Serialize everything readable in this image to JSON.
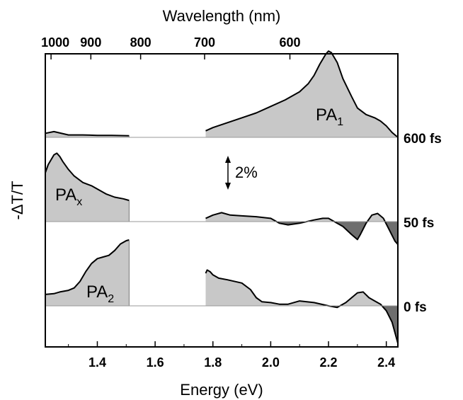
{
  "chart_data": {
    "type": "area",
    "xlabel": "Energy (eV)",
    "ylabel": "-ΔT/T",
    "top_axis_label": "Wavelength (nm)",
    "xlim": [
      1.22,
      2.44
    ],
    "x_ticks": [
      1.4,
      1.6,
      1.8,
      2.0,
      2.2,
      2.4
    ],
    "x_tick_labels": [
      "1.4",
      "1.6",
      "1.8",
      "2.0",
      "2.2",
      "2.4"
    ],
    "wavelength_ticks_nm": [
      1000,
      900,
      800,
      700,
      600
    ],
    "wavelength_tick_labels": [
      "1000",
      "900",
      "800",
      "700",
      "600"
    ],
    "scale_bar_label": "2%",
    "grid": false,
    "fill_positive": "#c8c8c8",
    "fill_negative": "#6e6e6e",
    "series": [
      {
        "name": "600 fs",
        "peak_label": "PA",
        "peak_label_sub": "1",
        "segments": [
          {
            "x": [
              1.22,
              1.25,
              1.3,
              1.35,
              1.4,
              1.45,
              1.51
            ],
            "y": [
              0.25,
              0.35,
              0.15,
              0.15,
              0.12,
              0.12,
              0.1
            ]
          },
          {
            "x": [
              1.775,
              1.8,
              1.85,
              1.9,
              1.95,
              2.0,
              2.05,
              2.1,
              2.13,
              2.15,
              2.17,
              2.19,
              2.2,
              2.21,
              2.23,
              2.25,
              2.28,
              2.3,
              2.33,
              2.36,
              2.38,
              2.4,
              2.42,
              2.44
            ],
            "y": [
              0.4,
              0.6,
              0.9,
              1.2,
              1.5,
              1.9,
              2.3,
              2.8,
              3.3,
              3.8,
              4.5,
              5.1,
              5.3,
              5.2,
              4.6,
              3.6,
              2.5,
              1.8,
              1.4,
              1.2,
              1.0,
              0.7,
              0.3,
              0.0
            ]
          }
        ]
      },
      {
        "name": "50 fs",
        "peak_label": "PA",
        "peak_label_sub": "x",
        "segments": [
          {
            "x": [
              1.22,
              1.23,
              1.25,
              1.26,
              1.27,
              1.28,
              1.3,
              1.32,
              1.35,
              1.38,
              1.4,
              1.43,
              1.46,
              1.49,
              1.51
            ],
            "y": [
              3.0,
              3.5,
              4.1,
              4.2,
              4.0,
              3.7,
              3.2,
              2.8,
              2.4,
              2.2,
              2.0,
              1.7,
              1.5,
              1.4,
              1.3
            ]
          },
          {
            "x": [
              1.775,
              1.8,
              1.83,
              1.86,
              1.9,
              1.95,
              2.0,
              2.03,
              2.06,
              2.1,
              2.15,
              2.18,
              2.2,
              2.22,
              2.25,
              2.28,
              2.3,
              2.31,
              2.33,
              2.35,
              2.37,
              2.39,
              2.41,
              2.43,
              2.44
            ],
            "y": [
              0.2,
              0.4,
              0.55,
              0.4,
              0.35,
              0.3,
              0.2,
              -0.1,
              -0.2,
              -0.1,
              0.1,
              0.2,
              0.2,
              0.0,
              -0.3,
              -0.8,
              -1.1,
              -0.8,
              -0.1,
              0.4,
              0.5,
              0.2,
              -0.5,
              -1.2,
              -1.4
            ]
          }
        ]
      },
      {
        "name": "0 fs",
        "peak_label": "PA",
        "peak_label_sub": "2",
        "segments": [
          {
            "x": [
              1.22,
              1.25,
              1.27,
              1.3,
              1.32,
              1.34,
              1.36,
              1.38,
              1.4,
              1.42,
              1.44,
              1.46,
              1.48,
              1.5,
              1.51
            ],
            "y": [
              0.7,
              0.75,
              0.85,
              0.95,
              1.1,
              1.5,
              2.1,
              2.6,
              2.9,
              3.0,
              3.1,
              3.4,
              3.8,
              4.0,
              4.05
            ]
          },
          {
            "x": [
              1.775,
              1.78,
              1.79,
              1.8,
              1.82,
              1.85,
              1.9,
              1.93,
              1.95,
              1.97,
              2.0,
              2.03,
              2.06,
              2.1,
              2.15,
              2.2,
              2.23,
              2.26,
              2.28,
              2.3,
              2.32,
              2.34,
              2.36,
              2.38,
              2.4,
              2.42,
              2.44
            ],
            "y": [
              2.0,
              2.2,
              2.1,
              1.9,
              1.7,
              1.6,
              1.4,
              1.0,
              0.5,
              0.25,
              0.2,
              0.1,
              0.1,
              0.3,
              0.2,
              0.0,
              -0.1,
              0.2,
              0.5,
              0.8,
              0.85,
              0.5,
              0.3,
              0.1,
              -0.3,
              -1.0,
              -2.3
            ]
          }
        ]
      }
    ]
  }
}
